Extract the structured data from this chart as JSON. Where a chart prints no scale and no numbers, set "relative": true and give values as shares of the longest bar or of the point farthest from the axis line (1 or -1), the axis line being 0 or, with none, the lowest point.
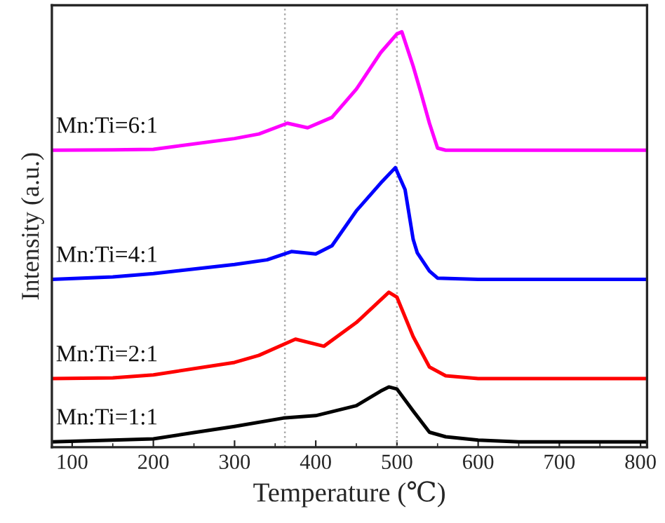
{
  "chart_data": {
    "type": "line",
    "relative": true,
    "xlabel": "Temperature (℃)",
    "ylabel": "Intensity (a.u.)",
    "xlim": [
      75,
      808
    ],
    "xticks": [
      100,
      200,
      300,
      400,
      500,
      600,
      700,
      800
    ],
    "grid": false,
    "legend": false,
    "marker": "none",
    "line_style": "solid",
    "series": [
      {
        "name": "Mn:Ti=1:1",
        "color": "#000000",
        "x": [
          75,
          150,
          200,
          250,
          300,
          360,
          400,
          450,
          480,
          490,
          500,
          520,
          540,
          560,
          600,
          650,
          808
        ],
        "values": [
          0.013,
          0.017,
          0.02,
          0.035,
          0.05,
          0.07,
          0.076,
          0.1,
          0.135,
          0.145,
          0.14,
          0.087,
          0.036,
          0.025,
          0.017,
          0.013,
          0.013
        ]
      },
      {
        "name": "Mn:Ti=2:1",
        "color": "#ff0000",
        "x": [
          75,
          150,
          200,
          300,
          330,
          375,
          410,
          450,
          490,
          500,
          520,
          540,
          560,
          600,
          808
        ],
        "values": [
          0.165,
          0.167,
          0.174,
          0.204,
          0.221,
          0.26,
          0.243,
          0.3,
          0.373,
          0.361,
          0.266,
          0.193,
          0.172,
          0.165,
          0.165
        ]
      },
      {
        "name": "Mn:Ti=4:1",
        "color": "#0000ff",
        "x": [
          75,
          150,
          200,
          300,
          340,
          370,
          400,
          420,
          450,
          480,
          498,
          510,
          520,
          525,
          540,
          550,
          600,
          808
        ],
        "values": [
          0.404,
          0.41,
          0.418,
          0.44,
          0.451,
          0.471,
          0.465,
          0.485,
          0.569,
          0.636,
          0.673,
          0.62,
          0.5,
          0.468,
          0.424,
          0.407,
          0.404,
          0.404
        ]
      },
      {
        "name": "Mn:Ti=6:1",
        "color": "#ff00ff",
        "x": [
          75,
          150,
          200,
          300,
          330,
          365,
          390,
          420,
          450,
          480,
          500,
          506,
          520,
          530,
          540,
          550,
          560,
          808
        ],
        "values": [
          0.715,
          0.716,
          0.717,
          0.743,
          0.754,
          0.78,
          0.769,
          0.794,
          0.862,
          0.95,
          0.995,
          1.0,
          0.917,
          0.85,
          0.78,
          0.72,
          0.715,
          0.715
        ]
      }
    ],
    "ref_lines": [
      {
        "axis": "x",
        "value": 362,
        "color": "#aaaaaa",
        "line_style": "dotted"
      },
      {
        "axis": "x",
        "value": 500,
        "color": "#aaaaaa",
        "line_style": "dotted"
      }
    ]
  }
}
